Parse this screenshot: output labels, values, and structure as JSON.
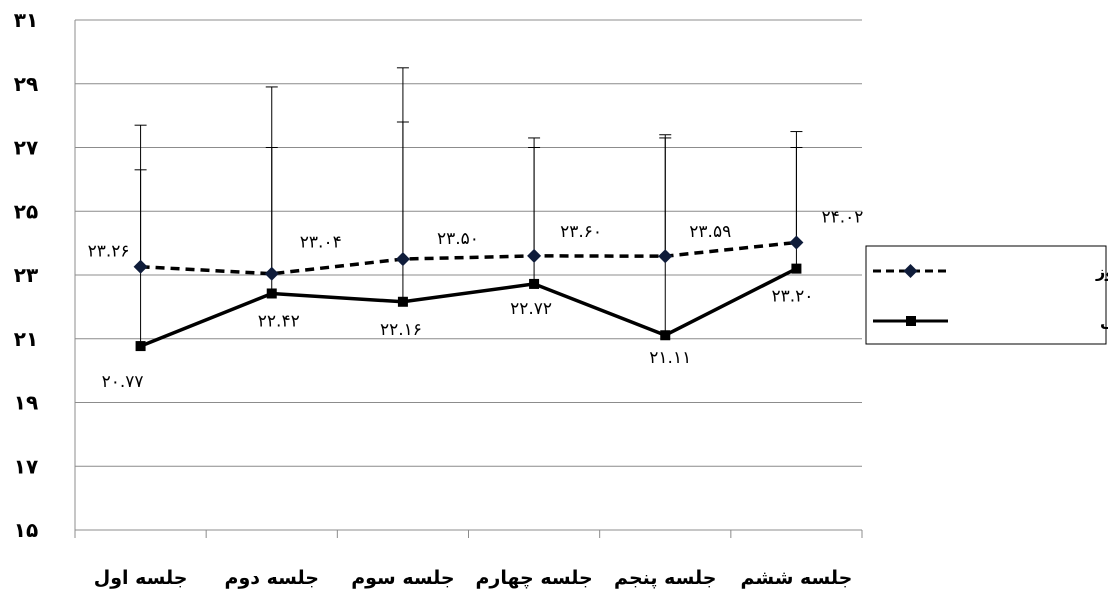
{
  "chart_data": {
    "type": "line",
    "categories": [
      "جلسه اول",
      "جلسه دوم",
      "جلسه سوم",
      "جلسه چهارم",
      "جلسه پنجم",
      "جلسه ششم"
    ],
    "ylim": [
      15,
      31
    ],
    "yticks": [
      15,
      17,
      19,
      21,
      23,
      25,
      27,
      29,
      31
    ],
    "ytick_labels": [
      "۱۵",
      "۱۷",
      "۱۹",
      "۲۱",
      "۲۳",
      "۲۵",
      "۲۷",
      "۲۹",
      "۳۱"
    ],
    "grid": true,
    "legend_position": "right",
    "series": [
      {
        "name": "سایکوز",
        "style": "dashed",
        "marker": "diamond",
        "color": "#000000",
        "marker_color": "#0f1c3a",
        "values": [
          23.26,
          23.04,
          23.5,
          23.6,
          23.59,
          24.02
        ],
        "value_labels": [
          "۲۳.۲۶",
          "۲۳.۰۴",
          "۲۳.۵۰",
          "۲۳.۶۰",
          "۲۳.۵۹",
          "۲۴.۰۲"
        ],
        "error_upper": [
          27.7,
          28.9,
          29.5,
          27.3,
          27.4,
          27.5
        ]
      },
      {
        "name": "اختلالات خلقی",
        "style": "solid",
        "marker": "square",
        "color": "#000000",
        "marker_color": "#000000",
        "values": [
          20.77,
          22.42,
          22.16,
          22.72,
          21.11,
          23.2
        ],
        "value_labels": [
          "۲۰.۷۷",
          "۲۲.۴۲",
          "۲۲.۱۶",
          "۲۲.۷۲",
          "۲۱.۱۱",
          "۲۳.۲۰"
        ],
        "error_upper": [
          26.3,
          27.0,
          27.8,
          27.0,
          27.3,
          27.0
        ]
      }
    ]
  }
}
